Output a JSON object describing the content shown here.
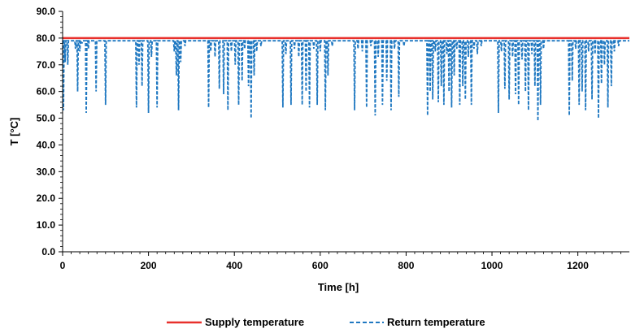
{
  "chart_data": {
    "type": "line",
    "xlabel": "Time [h]",
    "ylabel": "T [°C]",
    "xlim": [
      0,
      1320
    ],
    "ylim": [
      0,
      90
    ],
    "x_ticks": [
      0,
      200,
      400,
      600,
      800,
      1000,
      1200
    ],
    "x_tick_labels": [
      "0",
      "200",
      "400",
      "600",
      "800",
      "1000",
      "1200"
    ],
    "y_ticks": [
      0,
      10,
      20,
      30,
      40,
      50,
      60,
      70,
      80,
      90
    ],
    "y_tick_labels": [
      "0.0",
      "10.0",
      "20.0",
      "30.0",
      "40.0",
      "50.0",
      "60.0",
      "70.0",
      "80.0",
      "90.0"
    ],
    "grid": false,
    "legend": "bottom",
    "baseline_return_temperature": 79,
    "series": [
      {
        "name": "Supply temperature",
        "style": "solid",
        "color": "#e8302c",
        "x": [
          0,
          1320
        ],
        "y": [
          80,
          80
        ]
      },
      {
        "name": "Return temperature",
        "style": "dashed",
        "color": "#1f78c1",
        "dips": [
          [
            2,
            53
          ],
          [
            6,
            71
          ],
          [
            12,
            70
          ],
          [
            30,
            76
          ],
          [
            35,
            60
          ],
          [
            40,
            75
          ],
          [
            45,
            78
          ],
          [
            55,
            52
          ],
          [
            60,
            76
          ],
          [
            78,
            60
          ],
          [
            100,
            55
          ],
          [
            172,
            54
          ],
          [
            178,
            70
          ],
          [
            185,
            62
          ],
          [
            200,
            52
          ],
          [
            207,
            73
          ],
          [
            220,
            54
          ],
          [
            260,
            75
          ],
          [
            265,
            66
          ],
          [
            270,
            53
          ],
          [
            275,
            71
          ],
          [
            285,
            77
          ],
          [
            340,
            54
          ],
          [
            345,
            75
          ],
          [
            355,
            73
          ],
          [
            365,
            61
          ],
          [
            375,
            59
          ],
          [
            385,
            53
          ],
          [
            393,
            75
          ],
          [
            402,
            70
          ],
          [
            410,
            55
          ],
          [
            418,
            64
          ],
          [
            424,
            76
          ],
          [
            433,
            62
          ],
          [
            439,
            50
          ],
          [
            446,
            66
          ],
          [
            452,
            75
          ],
          [
            462,
            77
          ],
          [
            513,
            54
          ],
          [
            520,
            74
          ],
          [
            532,
            55
          ],
          [
            540,
            76
          ],
          [
            550,
            73
          ],
          [
            558,
            55
          ],
          [
            567,
            60
          ],
          [
            575,
            54
          ],
          [
            585,
            76
          ],
          [
            593,
            55
          ],
          [
            600,
            75
          ],
          [
            612,
            53
          ],
          [
            618,
            66
          ],
          [
            628,
            77
          ],
          [
            680,
            53
          ],
          [
            688,
            76
          ],
          [
            698,
            75
          ],
          [
            708,
            54
          ],
          [
            718,
            77
          ],
          [
            728,
            51
          ],
          [
            735,
            73
          ],
          [
            745,
            55
          ],
          [
            755,
            64
          ],
          [
            765,
            53
          ],
          [
            773,
            76
          ],
          [
            783,
            58
          ],
          [
            795,
            77
          ],
          [
            850,
            51
          ],
          [
            856,
            60
          ],
          [
            862,
            57
          ],
          [
            868,
            75
          ],
          [
            875,
            56
          ],
          [
            882,
            62
          ],
          [
            888,
            55
          ],
          [
            895,
            74
          ],
          [
            900,
            60
          ],
          [
            906,
            54
          ],
          [
            912,
            66
          ],
          [
            918,
            76
          ],
          [
            925,
            55
          ],
          [
            932,
            62
          ],
          [
            938,
            57
          ],
          [
            945,
            73
          ],
          [
            952,
            55
          ],
          [
            958,
            76
          ],
          [
            966,
            74
          ],
          [
            975,
            77
          ],
          [
            1015,
            52
          ],
          [
            1022,
            75
          ],
          [
            1030,
            61
          ],
          [
            1040,
            57
          ],
          [
            1048,
            73
          ],
          [
            1055,
            59
          ],
          [
            1062,
            55
          ],
          [
            1070,
            72
          ],
          [
            1078,
            60
          ],
          [
            1085,
            53
          ],
          [
            1093,
            74
          ],
          [
            1100,
            62
          ],
          [
            1107,
            49
          ],
          [
            1113,
            55
          ],
          [
            1120,
            76
          ],
          [
            1180,
            51
          ],
          [
            1187,
            64
          ],
          [
            1195,
            76
          ],
          [
            1203,
            55
          ],
          [
            1210,
            60
          ],
          [
            1218,
            53
          ],
          [
            1225,
            75
          ],
          [
            1233,
            57
          ],
          [
            1240,
            74
          ],
          [
            1248,
            50
          ],
          [
            1255,
            63
          ],
          [
            1262,
            70
          ],
          [
            1270,
            54
          ],
          [
            1278,
            62
          ],
          [
            1285,
            75
          ],
          [
            1295,
            77
          ]
        ]
      }
    ]
  }
}
